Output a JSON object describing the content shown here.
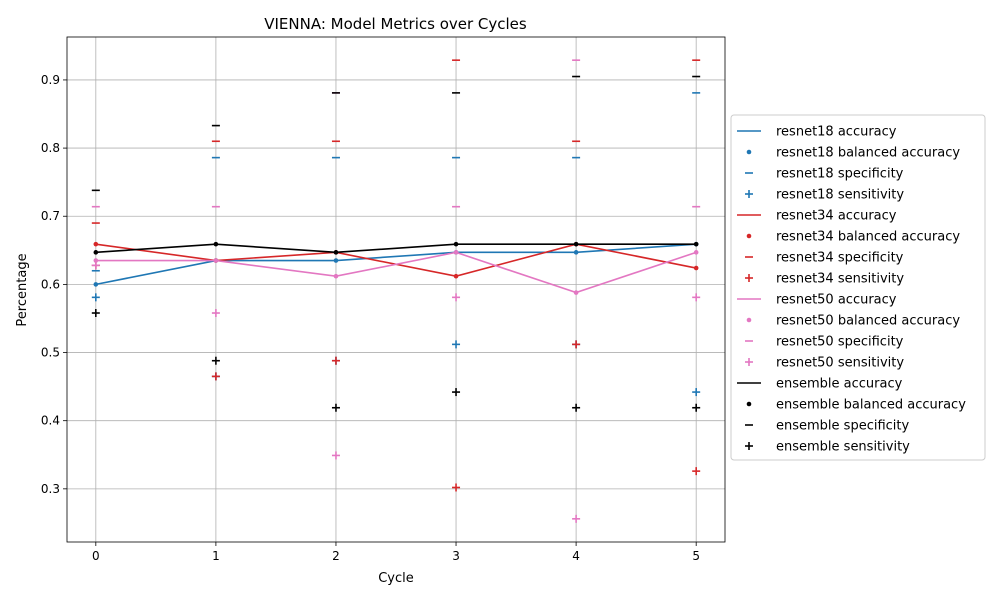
{
  "chart_data": {
    "type": "line",
    "title": "VIENNA: Model Metrics over Cycles",
    "xlabel": "Cycle",
    "ylabel": "Percentage",
    "x": [
      0,
      1,
      2,
      3,
      4,
      5
    ],
    "xlim": [
      -0.24,
      5.24
    ],
    "ylim": [
      0.222,
      0.963
    ],
    "xticks": [
      0,
      1,
      2,
      3,
      4,
      5
    ],
    "yticks": [
      0.3,
      0.4,
      0.5,
      0.6,
      0.7,
      0.8,
      0.9
    ],
    "grid": true,
    "legend_position": "right, outside plot",
    "series": [
      {
        "name": "resnet18",
        "color": "#1f77b4",
        "accuracy": [
          0.6,
          0.635,
          0.635,
          0.647,
          0.647,
          0.659
        ],
        "balanced_accuracy": [
          0.6,
          0.635,
          0.635,
          0.647,
          0.647,
          0.659
        ],
        "specificity": [
          0.62,
          0.786,
          0.786,
          0.786,
          0.786,
          0.881
        ],
        "sensitivity": [
          0.581,
          0.465,
          0.488,
          0.512,
          0.512,
          0.442
        ]
      },
      {
        "name": "resnet34",
        "color": "#d62728",
        "accuracy": [
          0.659,
          0.635,
          0.647,
          0.612,
          0.659,
          0.624
        ],
        "balanced_accuracy": [
          0.659,
          0.635,
          0.647,
          0.612,
          0.659,
          0.624
        ],
        "specificity": [
          0.69,
          0.81,
          0.81,
          0.929,
          0.81,
          0.929
        ],
        "sensitivity": [
          0.628,
          0.465,
          0.488,
          0.302,
          0.512,
          0.326
        ]
      },
      {
        "name": "resnet50",
        "color": "#e377c2",
        "accuracy": [
          0.635,
          0.635,
          0.612,
          0.647,
          0.588,
          0.647
        ],
        "balanced_accuracy": [
          0.635,
          0.635,
          0.612,
          0.647,
          0.588,
          0.647
        ],
        "specificity": [
          0.714,
          0.714,
          0.881,
          0.714,
          0.929,
          0.714
        ],
        "sensitivity": [
          0.628,
          0.558,
          0.349,
          0.581,
          0.256,
          0.581
        ]
      },
      {
        "name": "ensemble",
        "color": "#000000",
        "accuracy": [
          0.647,
          0.659,
          0.647,
          0.659,
          0.659,
          0.659
        ],
        "balanced_accuracy": [
          0.647,
          0.659,
          0.647,
          0.659,
          0.659,
          0.659
        ],
        "specificity": [
          0.738,
          0.833,
          0.881,
          0.881,
          0.905,
          0.905
        ],
        "sensitivity": [
          0.558,
          0.488,
          0.419,
          0.442,
          0.419,
          0.419
        ]
      }
    ],
    "legend": [
      {
        "label": "resnet18 accuracy",
        "color": "#1f77b4",
        "marker": "line"
      },
      {
        "label": "resnet18 balanced accuracy",
        "color": "#1f77b4",
        "marker": "dot"
      },
      {
        "label": "resnet18 specificity",
        "color": "#1f77b4",
        "marker": "dash"
      },
      {
        "label": "resnet18 sensitivity",
        "color": "#1f77b4",
        "marker": "plus"
      },
      {
        "label": "resnet34 accuracy",
        "color": "#d62728",
        "marker": "line"
      },
      {
        "label": "resnet34 balanced accuracy",
        "color": "#d62728",
        "marker": "dot"
      },
      {
        "label": "resnet34 specificity",
        "color": "#d62728",
        "marker": "dash"
      },
      {
        "label": "resnet34 sensitivity",
        "color": "#d62728",
        "marker": "plus"
      },
      {
        "label": "resnet50 accuracy",
        "color": "#e377c2",
        "marker": "line"
      },
      {
        "label": "resnet50 balanced accuracy",
        "color": "#e377c2",
        "marker": "dot"
      },
      {
        "label": "resnet50 specificity",
        "color": "#e377c2",
        "marker": "dash"
      },
      {
        "label": "resnet50 sensitivity",
        "color": "#e377c2",
        "marker": "plus"
      },
      {
        "label": "ensemble accuracy",
        "color": "#000000",
        "marker": "line"
      },
      {
        "label": "ensemble balanced accuracy",
        "color": "#000000",
        "marker": "dot"
      },
      {
        "label": "ensemble specificity",
        "color": "#000000",
        "marker": "dash"
      },
      {
        "label": "ensemble sensitivity",
        "color": "#000000",
        "marker": "plus"
      }
    ]
  }
}
